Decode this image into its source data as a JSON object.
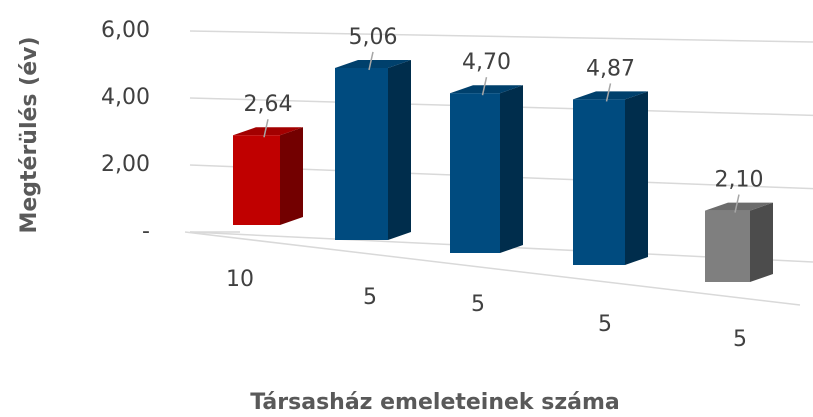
{
  "chart_data": {
    "type": "bar3d",
    "x_label": "Társasház emeleteinek száma",
    "y_label": "Megtérülés (év)",
    "categories": [
      "10",
      "5",
      "5",
      "5",
      "5"
    ],
    "values": [
      2.64,
      5.06,
      4.7,
      4.87,
      2.1
    ],
    "value_labels": [
      "2,64",
      "5,06",
      "4,70",
      "4,87",
      "2,10"
    ],
    "colors": [
      "#c00000",
      "#004b7f",
      "#004b7f",
      "#004b7f",
      "#7f7f7f"
    ],
    "ylim": [
      0,
      6
    ],
    "yticks": [
      {
        "value": 0,
        "label": "-"
      },
      {
        "value": 2,
        "label": "2,00"
      },
      {
        "value": 4,
        "label": "4,00"
      },
      {
        "value": 6,
        "label": "6,00"
      }
    ],
    "grid": true
  }
}
